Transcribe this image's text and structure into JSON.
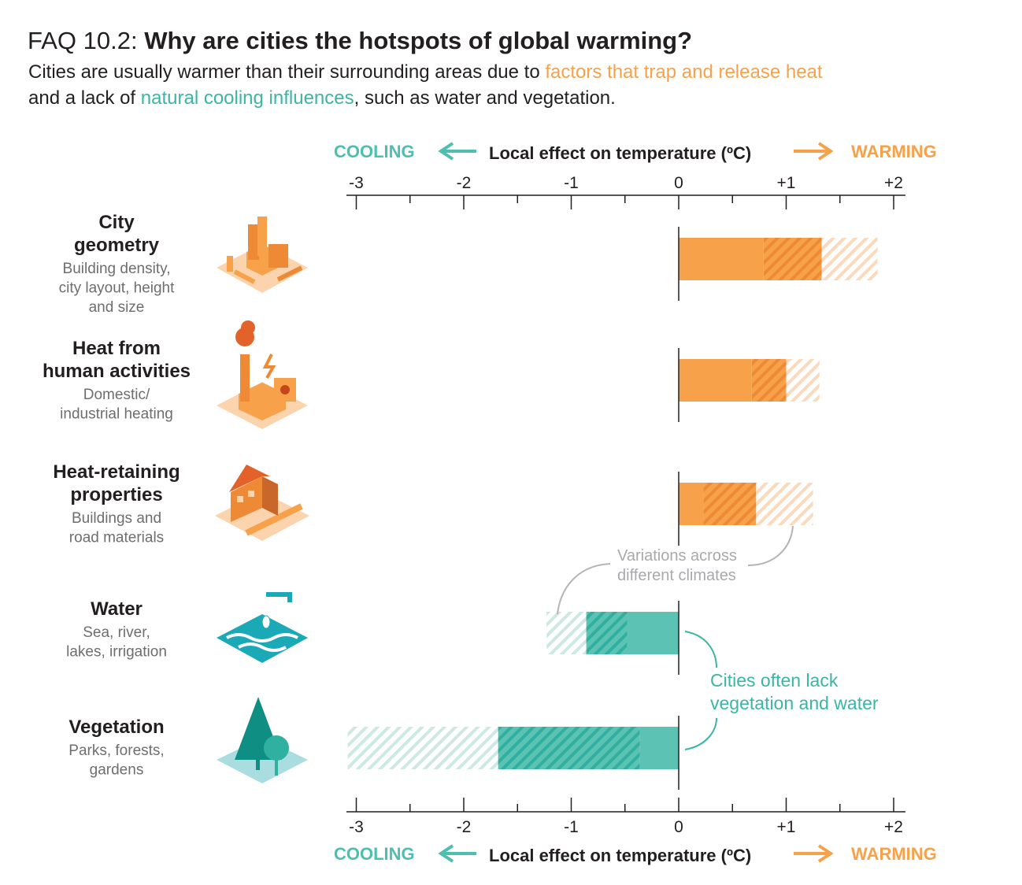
{
  "header": {
    "title_prefix": "FAQ 10.2: ",
    "title_main": "Why are cities the hotspots of global warming?",
    "sub_line1_a": "Cities are usually warmer than their surrounding areas due to ",
    "sub_line1_b": "factors that trap and release heat",
    "sub_line2_a": "and a lack of ",
    "sub_line2_b": "natural cooling influences",
    "sub_line2_c": ", such as water and vegetation."
  },
  "colors": {
    "warm": "#f7a14a",
    "warm_dark": "#ee8a35",
    "warm_light": "#fbd9bd",
    "cool": "#5cc2b4",
    "cool_dark": "#2fb0a0",
    "cool_light": "#cde9e3"
  },
  "chart_data": {
    "type": "bar",
    "title": "Local effect on temperature (ºC)",
    "xlabel": "Local effect on temperature (ºC)",
    "cooling_label": "COOLING",
    "warming_label": "WARMING",
    "xlim": [
      -3.1,
      2.1
    ],
    "ticks": [
      -3,
      -2,
      -1,
      0,
      1,
      2
    ],
    "tick_labels": [
      "-3",
      "-2",
      "-1",
      "0",
      "+1",
      "+2"
    ],
    "minor_ticks": [
      -2.5,
      -1.5,
      -0.5,
      0.5,
      1.5
    ],
    "legend": "none",
    "series_note": "solid = typical effect; dark hatched and light hatched = variations across different climates",
    "categories": [
      {
        "title": [
          "City",
          "geometry"
        ],
        "desc": [
          "Building density,",
          "city layout, height",
          "and size"
        ],
        "solid": 0.79,
        "dark_hatch": 1.33,
        "light_hatch": 1.85
      },
      {
        "title": [
          "Heat from",
          "human activities"
        ],
        "desc": [
          "Domestic/",
          "industrial heating"
        ],
        "solid": 0.68,
        "dark_hatch": 1.0,
        "light_hatch": 1.31
      },
      {
        "title": [
          "Heat-retaining",
          "properties"
        ],
        "desc": [
          "Buildings and",
          "road materials"
        ],
        "solid": 0.23,
        "dark_hatch": 0.72,
        "light_hatch": 1.25
      },
      {
        "title": [
          "Water"
        ],
        "desc": [
          "Sea, river,",
          "lakes, irrigation"
        ],
        "solid": -0.48,
        "dark_hatch": -0.86,
        "light_hatch": -1.23
      },
      {
        "title": [
          "Vegetation"
        ],
        "desc": [
          "Parks, forests,",
          "gardens"
        ],
        "solid": -0.36,
        "dark_hatch": -1.68,
        "light_hatch": -3.08
      }
    ],
    "annotations": {
      "variations": [
        "Variations across",
        "different climates"
      ],
      "lack": [
        "Cities often lack",
        "vegetation and water"
      ]
    }
  }
}
